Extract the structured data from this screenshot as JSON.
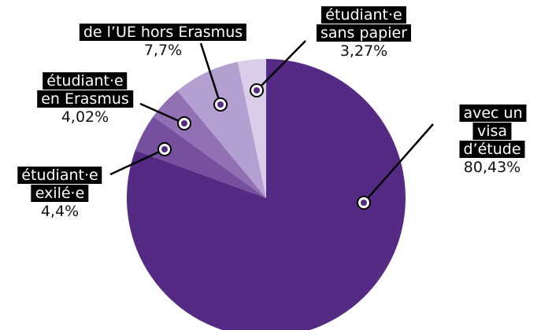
{
  "chart_data": {
    "type": "pie",
    "categories": [
      "avec un visa\nd’étude",
      "étudiant·e\nexilé·e",
      "étudiant·e\nen Erasmus",
      "de l’UE hors Erasmus",
      "étudiant·e\nsans papier"
    ],
    "values": [
      80.43,
      4.4,
      4.02,
      7.7,
      3.27
    ],
    "value_labels": [
      "80,43%",
      "4,4%",
      "4,02%",
      "7,7%",
      "3,27%"
    ],
    "colors": [
      "#542a84",
      "#76509e",
      "#9170b3",
      "#b39fd0",
      "#d9cde9"
    ]
  }
}
